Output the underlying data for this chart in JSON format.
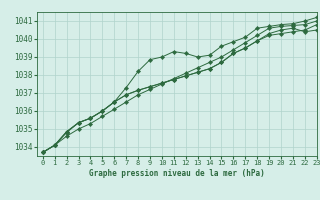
{
  "title": "Graphe pression niveau de la mer (hPa)",
  "background_color": "#d6eee8",
  "grid_color": "#b0d4cc",
  "line_color": "#2d6a3f",
  "xlim": [
    -0.5,
    23
  ],
  "ylim": [
    1033.5,
    1041.5
  ],
  "yticks": [
    1034,
    1035,
    1036,
    1037,
    1038,
    1039,
    1040,
    1041
  ],
  "xticks": [
    0,
    1,
    2,
    3,
    4,
    5,
    6,
    7,
    8,
    9,
    10,
    11,
    12,
    13,
    14,
    15,
    16,
    17,
    18,
    19,
    20,
    21,
    22,
    23
  ],
  "series": [
    [
      1033.7,
      1034.1,
      1034.8,
      1035.35,
      1035.6,
      1036.0,
      1036.5,
      1037.3,
      1038.2,
      1038.85,
      1039.0,
      1039.3,
      1039.2,
      1039.0,
      1039.1,
      1039.6,
      1039.85,
      1040.1,
      1040.6,
      1040.7,
      1040.8,
      1040.85,
      1041.0,
      1041.2
    ],
    [
      1033.7,
      1034.1,
      1034.85,
      1035.35,
      1035.6,
      1036.0,
      1036.5,
      1036.9,
      1037.15,
      1037.35,
      1037.55,
      1037.75,
      1037.95,
      1038.15,
      1038.35,
      1038.7,
      1039.2,
      1039.5,
      1039.9,
      1040.2,
      1040.3,
      1040.4,
      1040.5,
      1040.8
    ],
    [
      1033.7,
      1034.1,
      1034.85,
      1035.35,
      1035.6,
      1036.0,
      1036.5,
      1036.9,
      1037.15,
      1037.35,
      1037.55,
      1037.75,
      1037.95,
      1038.15,
      1038.35,
      1038.7,
      1039.2,
      1039.5,
      1039.9,
      1040.3,
      1040.5,
      1040.6,
      1040.4,
      1040.5
    ],
    [
      1033.7,
      1034.1,
      1034.6,
      1035.0,
      1035.3,
      1035.7,
      1036.1,
      1036.5,
      1036.9,
      1037.2,
      1037.5,
      1037.8,
      1038.1,
      1038.4,
      1038.7,
      1039.0,
      1039.4,
      1039.8,
      1040.2,
      1040.6,
      1040.7,
      1040.75,
      1040.8,
      1041.0
    ]
  ]
}
